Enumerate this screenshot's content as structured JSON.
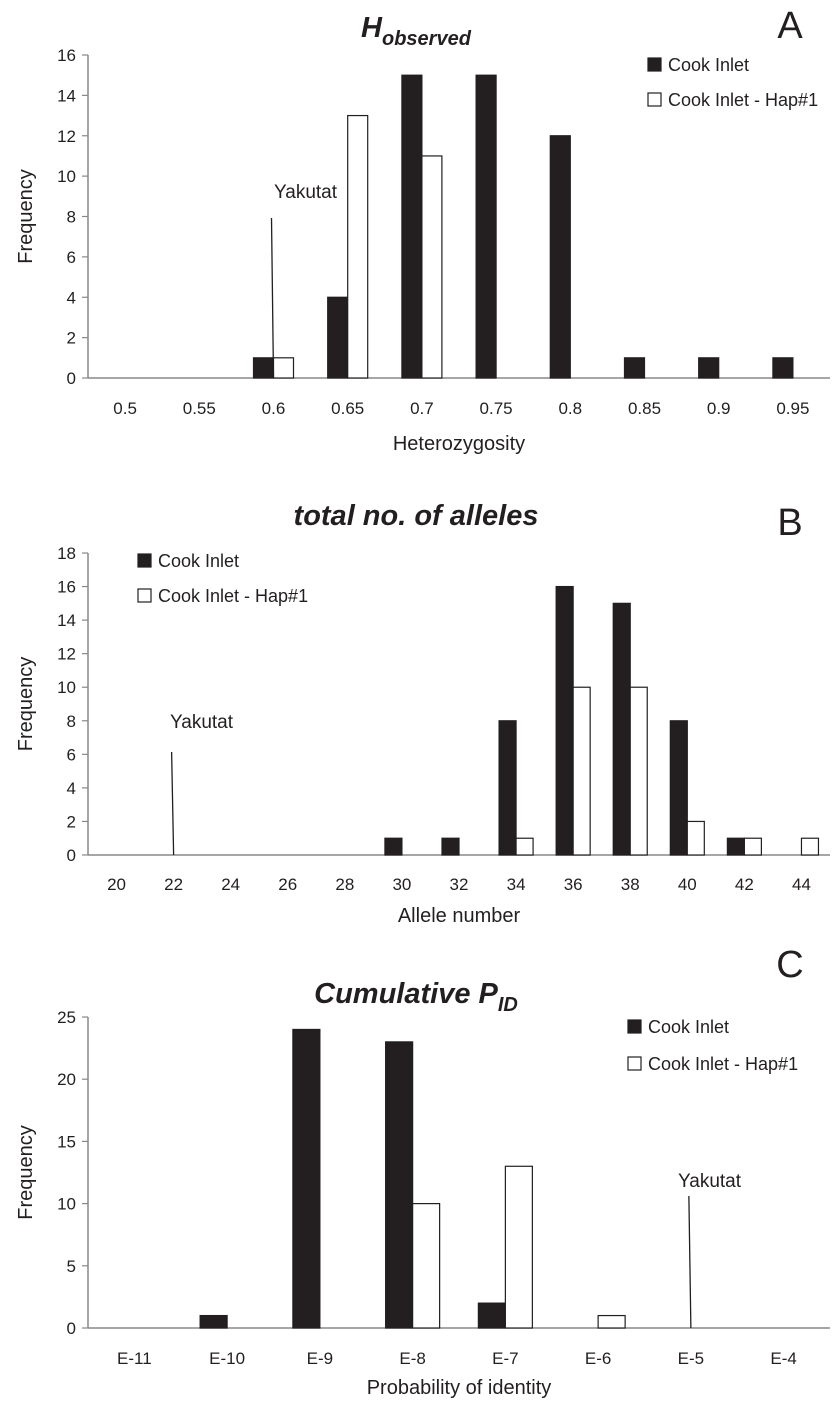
{
  "chart_data": [
    {
      "type": "bar",
      "panel_letter": "A",
      "title": "H",
      "title_subscript": "observed",
      "xlabel": "Heterozygosity",
      "ylabel": "Frequency",
      "categories": [
        "0.5",
        "0.55",
        "0.6",
        "0.65",
        "0.7",
        "0.75",
        "0.8",
        "0.85",
        "0.9",
        "0.95"
      ],
      "ylim": [
        0,
        16
      ],
      "yticks": [
        "0",
        "2",
        "4",
        "6",
        "8",
        "10",
        "12",
        "14",
        "16"
      ],
      "series": [
        {
          "name": "Cook Inlet",
          "color": "#231f20",
          "values": [
            0,
            0,
            1,
            4,
            15,
            15,
            12,
            1,
            1,
            1
          ]
        },
        {
          "name": "Cook Inlet - Hap#1",
          "color": "#ffffff",
          "values": [
            0,
            0,
            1,
            13,
            11,
            0,
            0,
            0,
            0,
            0
          ]
        }
      ],
      "legend_position": "top-right",
      "annotation": {
        "label": "Yakutat",
        "x": 0.6
      }
    },
    {
      "type": "bar",
      "panel_letter": "B",
      "title": "total no. of alleles",
      "xlabel": "Allele number",
      "ylabel": "Frequency",
      "categories": [
        "20",
        "22",
        "24",
        "26",
        "28",
        "30",
        "32",
        "34",
        "36",
        "38",
        "40",
        "42",
        "44"
      ],
      "ylim": [
        0,
        18
      ],
      "yticks": [
        "0",
        "2",
        "4",
        "6",
        "8",
        "10",
        "12",
        "14",
        "16",
        "18"
      ],
      "series": [
        {
          "name": "Cook Inlet",
          "color": "#231f20",
          "values": [
            0,
            0,
            0,
            0,
            0,
            1,
            1,
            8,
            16,
            15,
            8,
            1,
            0
          ]
        },
        {
          "name": "Cook Inlet - Hap#1",
          "color": "#ffffff",
          "values": [
            0,
            0,
            0,
            0,
            0,
            0,
            0,
            1,
            10,
            10,
            2,
            1,
            1
          ]
        }
      ],
      "legend_position": "top-left",
      "annotation": {
        "label": "Yakutat",
        "x": 22
      }
    },
    {
      "type": "bar",
      "panel_letter": "C",
      "title": "Cumulative P",
      "title_subscript": "ID",
      "xlabel": "Probability of identity",
      "ylabel": "Frequency",
      "categories": [
        "E-11",
        "E-10",
        "E-9",
        "E-8",
        "E-7",
        "E-6",
        "E-5",
        "E-4"
      ],
      "ylim": [
        0,
        25
      ],
      "yticks": [
        "0",
        "5",
        "10",
        "15",
        "20",
        "25"
      ],
      "series": [
        {
          "name": "Cook Inlet",
          "color": "#231f20",
          "values": [
            0,
            1,
            24,
            23,
            2,
            0,
            0,
            0
          ]
        },
        {
          "name": "Cook Inlet - Hap#1",
          "color": "#ffffff",
          "values": [
            0,
            0,
            0,
            10,
            13,
            1,
            0,
            0
          ]
        }
      ],
      "legend_position": "top-right",
      "annotation": {
        "label": "Yakutat",
        "x": "E-5"
      }
    }
  ]
}
